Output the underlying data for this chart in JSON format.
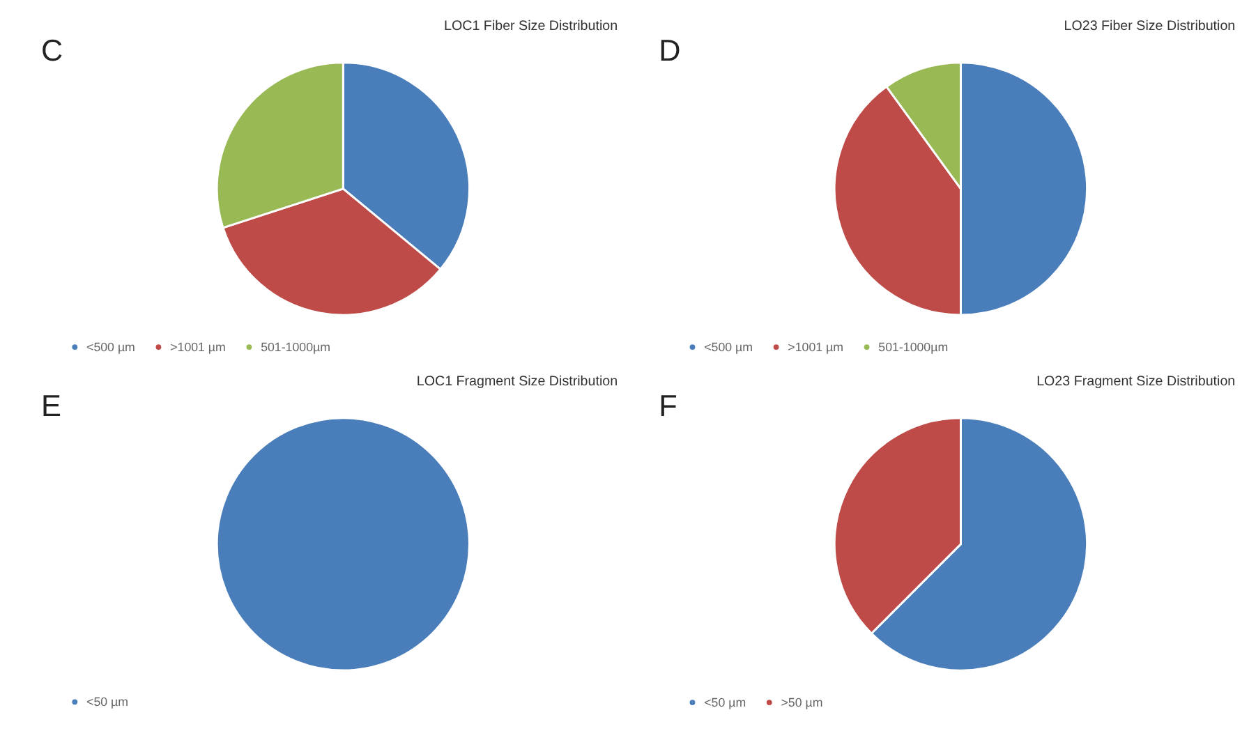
{
  "chart_data": [
    {
      "type": "pie",
      "title": "LOC1 Fiber Size Distribution",
      "categories": [
        "<500 µm",
        ">1001 µm",
        "501-1000µm"
      ],
      "values": [
        36,
        34,
        30
      ],
      "colors": [
        "#4a7ebb",
        "#be4b48",
        "#98b954"
      ],
      "legend": "bottom",
      "annotations": [
        "C"
      ]
    },
    {
      "type": "pie",
      "title": "LO23 Fiber Size Distribution",
      "categories": [
        "<500 µm",
        ">1001 µm",
        "501-1000µm"
      ],
      "values": [
        50,
        40,
        10
      ],
      "colors": [
        "#4a7ebb",
        "#be4b48",
        "#98b954"
      ],
      "legend": "bottom",
      "annotations": [
        "D"
      ]
    },
    {
      "type": "pie",
      "title": "LOC1 Fragment Size Distribution",
      "categories": [
        "<50 µm"
      ],
      "values": [
        100
      ],
      "colors": [
        "#4a7ebb"
      ],
      "legend": "bottom",
      "annotations": [
        "E"
      ]
    },
    {
      "type": "pie",
      "title": "LO23 Fragment Size Distribution",
      "categories": [
        "<50 µm",
        ">50 µm"
      ],
      "values": [
        62.5,
        37.5
      ],
      "colors": [
        "#4a7ebb",
        "#be4b48"
      ],
      "legend": "bottom",
      "annotations": [
        "F"
      ]
    }
  ]
}
